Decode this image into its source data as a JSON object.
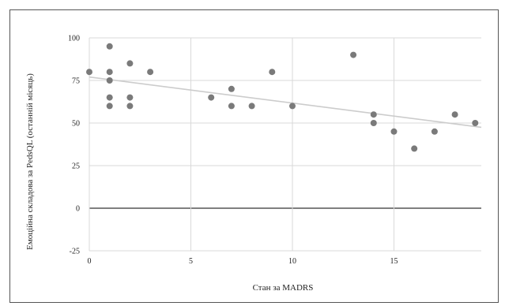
{
  "chart_data": {
    "type": "scatter",
    "title": "",
    "xlabel": "Стан за MADRS",
    "ylabel": "Емоційна складова за PedsQL (останній місяць)",
    "xlim": [
      0,
      19.3
    ],
    "ylim": [
      -25,
      100
    ],
    "x_ticks": [
      0,
      5,
      10,
      15
    ],
    "y_ticks": [
      -25,
      0,
      25,
      50,
      75,
      100
    ],
    "grid": true,
    "legend": "none",
    "marker_color": "#7a7a7a",
    "trendline": {
      "x": [
        0,
        19.3
      ],
      "y": [
        77,
        47.5
      ],
      "color": "#cccccc"
    },
    "zero_line_color": "#333333",
    "points": [
      {
        "x": 0,
        "y": 80
      },
      {
        "x": 1,
        "y": 95
      },
      {
        "x": 1,
        "y": 80
      },
      {
        "x": 1,
        "y": 75
      },
      {
        "x": 1,
        "y": 65
      },
      {
        "x": 1,
        "y": 60
      },
      {
        "x": 2,
        "y": 85
      },
      {
        "x": 2,
        "y": 65
      },
      {
        "x": 2,
        "y": 60
      },
      {
        "x": 3,
        "y": 80
      },
      {
        "x": 6,
        "y": 65
      },
      {
        "x": 7,
        "y": 70
      },
      {
        "x": 7,
        "y": 60
      },
      {
        "x": 8,
        "y": 60
      },
      {
        "x": 9,
        "y": 80
      },
      {
        "x": 10,
        "y": 60
      },
      {
        "x": 13,
        "y": 90
      },
      {
        "x": 14,
        "y": 55
      },
      {
        "x": 14,
        "y": 50
      },
      {
        "x": 15,
        "y": 45
      },
      {
        "x": 16,
        "y": 35
      },
      {
        "x": 17,
        "y": 45
      },
      {
        "x": 18,
        "y": 55
      },
      {
        "x": 19,
        "y": 50
      }
    ]
  }
}
